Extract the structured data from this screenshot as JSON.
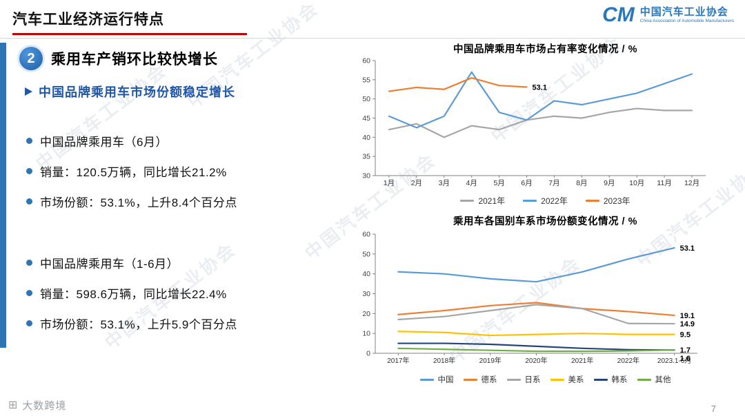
{
  "page": {
    "title": "汽车工业经济运行特点",
    "page_number": "7",
    "footer_watermark": "大数跨境",
    "diagonal_watermark": "中国汽车工业协会"
  },
  "logo": {
    "mark": "CM",
    "name_cn": "中国汽车工业协会",
    "name_en": "China Association of Automobile Manufacturers"
  },
  "left_panel": {
    "section_number": "2",
    "section_title": "乘用车产销环比较快增长",
    "subtitle": "中国品牌乘用车市场份额稳定增长",
    "groups": [
      {
        "items": [
          "中国品牌乘用车（6月）",
          "销量：120.5万辆，同比增长21.2%",
          "市场份额：53.1%，上升8.4个百分点"
        ]
      },
      {
        "items": [
          "中国品牌乘用车（1-6月）",
          "销量：598.6万辆，同比增长22.4%",
          "市场份额：53.1%，上升5.9个百分点"
        ]
      }
    ]
  },
  "colors": {
    "accent_blue": "#2E74B5",
    "title_underline_red": "#C00000",
    "subtitle_blue": "#1F56A8",
    "series_gray": "#A6A6A6",
    "series_blue": "#5B9BD5",
    "series_orange": "#ED7D31",
    "series_yellow": "#FFC000",
    "series_darkblue": "#264478",
    "series_green": "#70AD47"
  },
  "chart_data": [
    {
      "type": "line",
      "title": "中国品牌乘用车市场占有率变化情况 / %",
      "categories": [
        "1月",
        "2月",
        "3月",
        "4月",
        "5月",
        "6月",
        "7月",
        "8月",
        "9月",
        "10月",
        "11月",
        "12月"
      ],
      "ylim": [
        30,
        60
      ],
      "ytick_step": 5,
      "grid": false,
      "legend_position": "bottom",
      "series": [
        {
          "name": "2021年",
          "color": "#A6A6A6",
          "values": [
            42,
            43.5,
            40,
            43,
            42,
            44.5,
            45.5,
            45,
            46.5,
            47.5,
            47,
            47
          ]
        },
        {
          "name": "2022年",
          "color": "#5B9BD5",
          "values": [
            45.5,
            42.5,
            45.5,
            57,
            46.5,
            44.5,
            49.5,
            48.5,
            50,
            51.5,
            54,
            56.5
          ]
        },
        {
          "name": "2023年",
          "color": "#ED7D31",
          "values": [
            52,
            53,
            52.5,
            55.5,
            53.5,
            53.1
          ],
          "end_label": "53.1"
        }
      ]
    },
    {
      "type": "line",
      "title": "乘用车各国别车系市场份额变化情况 / %",
      "categories": [
        "2017年",
        "2018年",
        "2019年",
        "2020年",
        "2021年",
        "2022年",
        "2023.1-6月"
      ],
      "ylim": [
        0,
        60
      ],
      "ytick_step": 10,
      "grid": false,
      "legend_position": "bottom",
      "series": [
        {
          "name": "中国",
          "color": "#5B9BD5",
          "values": [
            41,
            40,
            37.5,
            36,
            41,
            47.5,
            53.1
          ],
          "end_label": "53.1"
        },
        {
          "name": "德系",
          "color": "#ED7D31",
          "values": [
            19.5,
            21.5,
            24,
            25.5,
            22.5,
            21,
            19.1
          ],
          "end_label": "19.1"
        },
        {
          "name": "日系",
          "color": "#A6A6A6",
          "values": [
            17,
            18.5,
            21.5,
            24.5,
            22.5,
            15,
            14.9
          ],
          "end_label": "14.9"
        },
        {
          "name": "美系",
          "color": "#FFC000",
          "values": [
            11,
            10.5,
            9,
            9.5,
            10,
            9.5,
            9.5
          ],
          "end_label": "9.5"
        },
        {
          "name": "韩系",
          "color": "#264478",
          "values": [
            5,
            5,
            4.5,
            3.5,
            2.5,
            1.8,
            1.6
          ],
          "end_label": "1.6"
        },
        {
          "name": "其他",
          "color": "#70AD47",
          "values": [
            2.5,
            2,
            1.5,
            1,
            1,
            1.2,
            1.7
          ],
          "end_label": "1.7"
        }
      ]
    }
  ]
}
